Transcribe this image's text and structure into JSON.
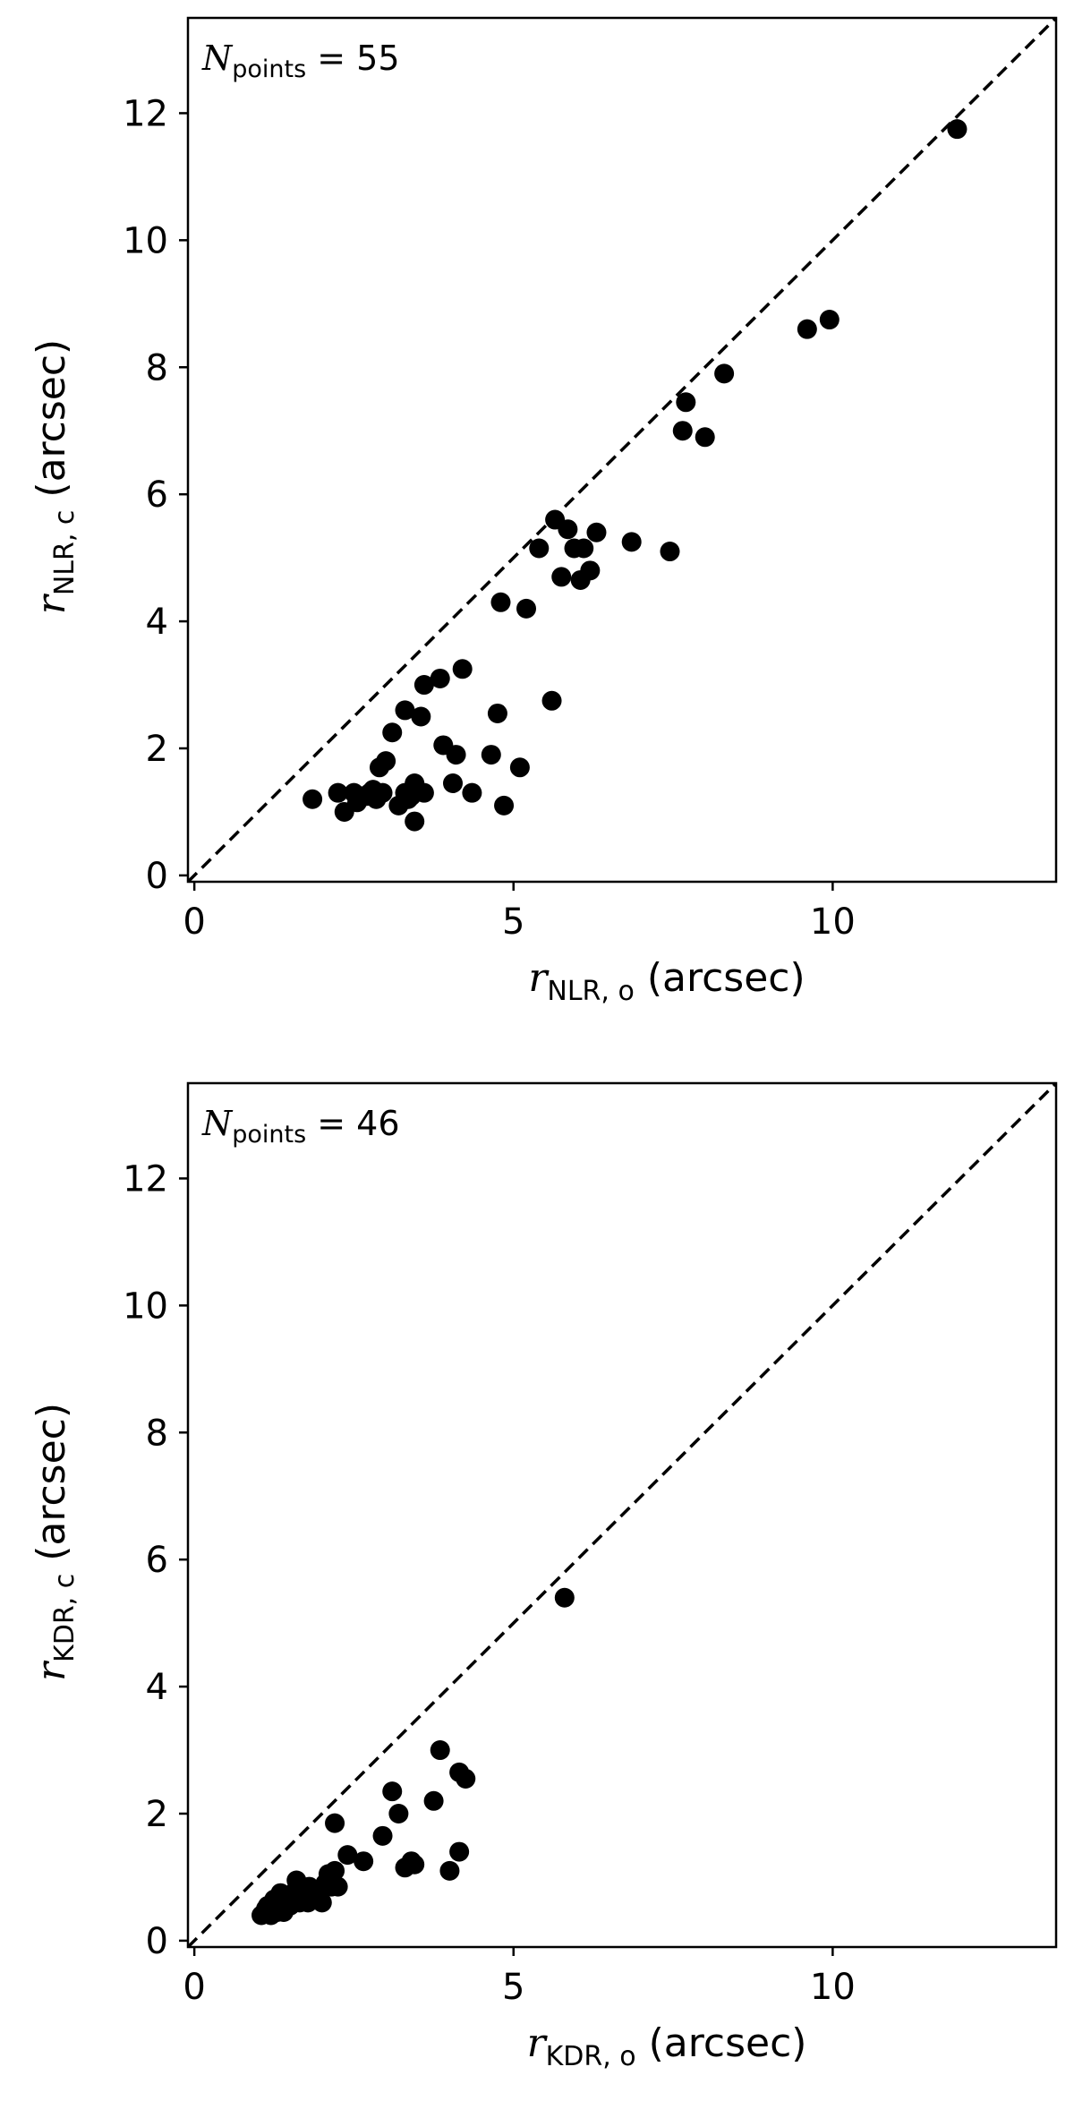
{
  "chart_data": [
    {
      "type": "scatter",
      "xlim": [
        -0.1,
        13.5
      ],
      "ylim": [
        -0.1,
        13.5
      ],
      "xticks": [
        0,
        5,
        10
      ],
      "yticks": [
        0,
        2,
        4,
        6,
        8,
        10,
        12
      ],
      "xlabel": {
        "var": "r",
        "sub": "NLR, o",
        "unit": "(arcsec)"
      },
      "ylabel": {
        "var": "r",
        "sub": "NLR, c",
        "unit": "(arcsec)"
      },
      "annotation": {
        "var": "N",
        "sub": "points",
        "eq": "= 55"
      },
      "reference_line": "y = x",
      "marker_color": "#000000",
      "points": [
        [
          1.85,
          1.2
        ],
        [
          2.25,
          1.3
        ],
        [
          2.35,
          1.0
        ],
        [
          2.5,
          1.3
        ],
        [
          2.6,
          1.25
        ],
        [
          2.7,
          1.25
        ],
        [
          2.8,
          1.35
        ],
        [
          2.85,
          1.2
        ],
        [
          2.9,
          1.7
        ],
        [
          2.95,
          1.3
        ],
        [
          3.0,
          1.8
        ],
        [
          3.1,
          2.25
        ],
        [
          3.2,
          1.1
        ],
        [
          3.3,
          2.6
        ],
        [
          3.3,
          1.3
        ],
        [
          3.4,
          1.25
        ],
        [
          3.45,
          1.45
        ],
        [
          3.45,
          0.85
        ],
        [
          3.55,
          2.5
        ],
        [
          3.6,
          1.3
        ],
        [
          3.6,
          3.0
        ],
        [
          3.85,
          3.1
        ],
        [
          3.9,
          2.05
        ],
        [
          4.05,
          1.45
        ],
        [
          4.1,
          1.9
        ],
        [
          4.2,
          3.25
        ],
        [
          4.35,
          1.3
        ],
        [
          4.65,
          1.9
        ],
        [
          4.75,
          2.55
        ],
        [
          4.8,
          4.3
        ],
        [
          4.85,
          1.1
        ],
        [
          5.1,
          1.7
        ],
        [
          5.2,
          4.2
        ],
        [
          5.4,
          5.15
        ],
        [
          5.6,
          2.75
        ],
        [
          5.65,
          5.6
        ],
        [
          5.75,
          4.7
        ],
        [
          5.85,
          5.45
        ],
        [
          5.95,
          5.15
        ],
        [
          6.05,
          4.65
        ],
        [
          6.1,
          5.15
        ],
        [
          6.2,
          4.8
        ],
        [
          6.3,
          5.4
        ],
        [
          6.85,
          5.25
        ],
        [
          7.45,
          5.1
        ],
        [
          7.65,
          7.0
        ],
        [
          7.7,
          7.45
        ],
        [
          8.0,
          6.9
        ],
        [
          8.3,
          7.9
        ],
        [
          9.6,
          8.6
        ],
        [
          9.95,
          8.75
        ],
        [
          11.95,
          11.75
        ],
        [
          2.55,
          1.15
        ],
        [
          2.75,
          1.3
        ],
        [
          3.35,
          1.2
        ]
      ]
    },
    {
      "type": "scatter",
      "xlim": [
        -0.1,
        13.5
      ],
      "ylim": [
        -0.1,
        13.5
      ],
      "xticks": [
        0,
        5,
        10
      ],
      "yticks": [
        0,
        2,
        4,
        6,
        8,
        10,
        12
      ],
      "xlabel": {
        "var": "r",
        "sub": "KDR, o",
        "unit": "(arcsec)"
      },
      "ylabel": {
        "var": "r",
        "sub": "KDR, c",
        "unit": "(arcsec)"
      },
      "annotation": {
        "var": "N",
        "sub": "points",
        "eq": "= 46"
      },
      "reference_line": "y = x",
      "marker_color": "#000000",
      "points": [
        [
          1.05,
          0.4
        ],
        [
          1.1,
          0.45
        ],
        [
          1.15,
          0.55
        ],
        [
          1.2,
          0.4
        ],
        [
          1.25,
          0.65
        ],
        [
          1.3,
          0.5
        ],
        [
          1.35,
          0.75
        ],
        [
          1.4,
          0.45
        ],
        [
          1.45,
          0.6
        ],
        [
          1.55,
          0.75
        ],
        [
          1.6,
          0.95
        ],
        [
          1.65,
          0.6
        ],
        [
          1.75,
          0.7
        ],
        [
          1.8,
          0.85
        ],
        [
          1.85,
          0.65
        ],
        [
          1.9,
          0.8
        ],
        [
          2.0,
          0.6
        ],
        [
          2.05,
          0.9
        ],
        [
          2.1,
          1.05
        ],
        [
          2.15,
          0.85
        ],
        [
          2.2,
          1.1
        ],
        [
          2.25,
          0.85
        ],
        [
          2.2,
          1.85
        ],
        [
          2.4,
          1.35
        ],
        [
          2.65,
          1.25
        ],
        [
          2.95,
          1.65
        ],
        [
          3.1,
          2.35
        ],
        [
          3.2,
          2.0
        ],
        [
          3.3,
          1.15
        ],
        [
          3.4,
          1.25
        ],
        [
          3.45,
          1.2
        ],
        [
          3.75,
          2.2
        ],
        [
          3.85,
          3.0
        ],
        [
          4.0,
          1.1
        ],
        [
          4.15,
          1.4
        ],
        [
          4.15,
          2.65
        ],
        [
          4.25,
          2.55
        ],
        [
          5.8,
          5.4
        ],
        [
          1.5,
          0.55
        ],
        [
          1.7,
          0.75
        ],
        [
          1.3,
          0.45
        ],
        [
          1.6,
          0.65
        ],
        [
          1.95,
          0.8
        ],
        [
          1.12,
          0.5
        ],
        [
          1.42,
          0.7
        ],
        [
          1.78,
          0.6
        ]
      ]
    }
  ]
}
